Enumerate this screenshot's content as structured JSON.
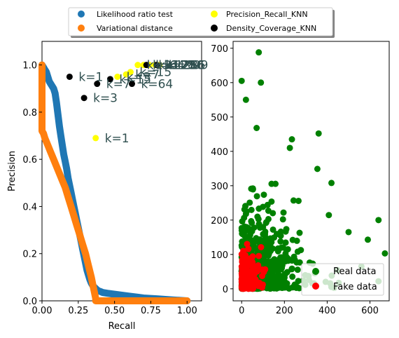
{
  "legend_top": {
    "items": [
      {
        "label": "Likelihood ratio test",
        "color": "#1f77b4"
      },
      {
        "label": "Precision_Recall_KNN",
        "color": "#ffff00"
      },
      {
        "label": "Variational distance",
        "color": "#ff7f0e"
      },
      {
        "label": "Density_Coverage_KNN",
        "color": "#000000"
      }
    ]
  },
  "chart_data": [
    {
      "type": "scatter",
      "xlabel": "Recall",
      "ylabel": "Precision",
      "xlim": [
        0.0,
        1.1
      ],
      "ylim": [
        0.0,
        1.1
      ],
      "xticks": [
        "0.00",
        "0.25",
        "0.50",
        "0.75",
        "1.00"
      ],
      "yticks": [
        "0.0",
        "0.2",
        "0.4",
        "0.6",
        "0.8",
        "1.0"
      ],
      "colors": {
        "lrt": "#1f77b4",
        "vd": "#ff7f0e",
        "pr": "#ffff00",
        "dc": "#000000",
        "annotation": "#2f4f4f"
      },
      "series": [
        {
          "name": "Likelihood ratio test",
          "x": [
            0.0,
            0.01,
            0.02,
            0.03,
            0.04,
            0.05,
            0.06,
            0.07,
            0.08,
            0.09,
            0.1,
            0.11,
            0.12,
            0.13,
            0.14,
            0.15,
            0.16,
            0.17,
            0.18,
            0.19,
            0.2,
            0.21,
            0.22,
            0.23,
            0.24,
            0.25,
            0.26,
            0.27,
            0.28,
            0.29,
            0.3,
            0.31,
            0.32,
            0.33,
            0.34,
            0.35,
            0.36,
            0.37,
            0.38,
            0.39,
            0.4,
            0.42,
            0.45,
            0.5,
            0.55,
            0.6,
            0.65,
            0.7,
            0.8,
            0.9,
            1.0
          ],
          "y": [
            1.0,
            0.99,
            0.98,
            0.97,
            0.95,
            0.93,
            0.92,
            0.91,
            0.9,
            0.88,
            0.84,
            0.79,
            0.74,
            0.7,
            0.66,
            0.62,
            0.59,
            0.56,
            0.52,
            0.49,
            0.46,
            0.43,
            0.4,
            0.37,
            0.34,
            0.31,
            0.28,
            0.25,
            0.22,
            0.19,
            0.16,
            0.13,
            0.11,
            0.09,
            0.075,
            0.065,
            0.058,
            0.052,
            0.046,
            0.042,
            0.04,
            0.035,
            0.032,
            0.028,
            0.024,
            0.02,
            0.016,
            0.012,
            0.008,
            0.004,
            0.0
          ]
        },
        {
          "name": "Variational distance",
          "x": [
            0.0,
            0.0,
            0.0,
            0.01,
            0.02,
            0.04,
            0.06,
            0.08,
            0.1,
            0.12,
            0.14,
            0.16,
            0.18,
            0.2,
            0.22,
            0.24,
            0.26,
            0.28,
            0.3,
            0.32,
            0.34,
            0.35,
            0.36,
            0.37,
            0.37,
            0.4,
            0.5,
            0.6,
            0.7,
            0.8,
            0.9,
            1.0
          ],
          "y": [
            1.0,
            0.85,
            0.72,
            0.71,
            0.69,
            0.66,
            0.63,
            0.6,
            0.57,
            0.54,
            0.51,
            0.48,
            0.44,
            0.4,
            0.36,
            0.32,
            0.28,
            0.24,
            0.2,
            0.15,
            0.1,
            0.07,
            0.04,
            0.01,
            0.0,
            0.0,
            0.0,
            0.0,
            0.0,
            0.0,
            0.0,
            0.0
          ]
        },
        {
          "name": "Precision_Recall_KNN",
          "points": [
            {
              "x": 0.37,
              "y": 0.69,
              "label": "k=1"
            },
            {
              "x": 0.52,
              "y": 0.95,
              "label": "k=3"
            },
            {
              "x": 0.58,
              "y": 0.96,
              "label": "k=7"
            },
            {
              "x": 0.61,
              "y": 0.97,
              "label": "k=15"
            },
            {
              "x": 0.66,
              "y": 1.0,
              "label": "k=31"
            },
            {
              "x": 0.7,
              "y": 1.0,
              "label": "k=64"
            },
            {
              "x": 0.74,
              "y": 1.0,
              "label": "k=128"
            },
            {
              "x": 0.78,
              "y": 1.0,
              "label": "k=256"
            },
            {
              "x": 0.81,
              "y": 1.0,
              "label": "k=999"
            }
          ]
        },
        {
          "name": "Density_Coverage_KNN",
          "points": [
            {
              "x": 0.19,
              "y": 0.95,
              "label": "k=1"
            },
            {
              "x": 0.29,
              "y": 0.86,
              "label": "k=3"
            },
            {
              "x": 0.38,
              "y": 0.92,
              "label": "k=7"
            },
            {
              "x": 0.47,
              "y": 0.94,
              "label": "k=15"
            },
            {
              "x": 0.62,
              "y": 0.92,
              "label": "k=64"
            },
            {
              "x": 0.72,
              "y": 1.0,
              "label": "k=128"
            },
            {
              "x": 0.79,
              "y": 1.0,
              "label": "k=256"
            }
          ]
        }
      ]
    },
    {
      "type": "scatter",
      "xlim": [
        -40,
        690
      ],
      "ylim": [
        -35,
        720
      ],
      "xticks": [
        0,
        200,
        400,
        600
      ],
      "yticks": [
        0,
        100,
        200,
        300,
        400,
        500,
        600,
        700
      ],
      "legend_position": "lower right",
      "series": [
        {
          "name": "Real data",
          "color": "#008000"
        },
        {
          "name": "Fake data",
          "color": "#ff0000"
        }
      ]
    }
  ]
}
